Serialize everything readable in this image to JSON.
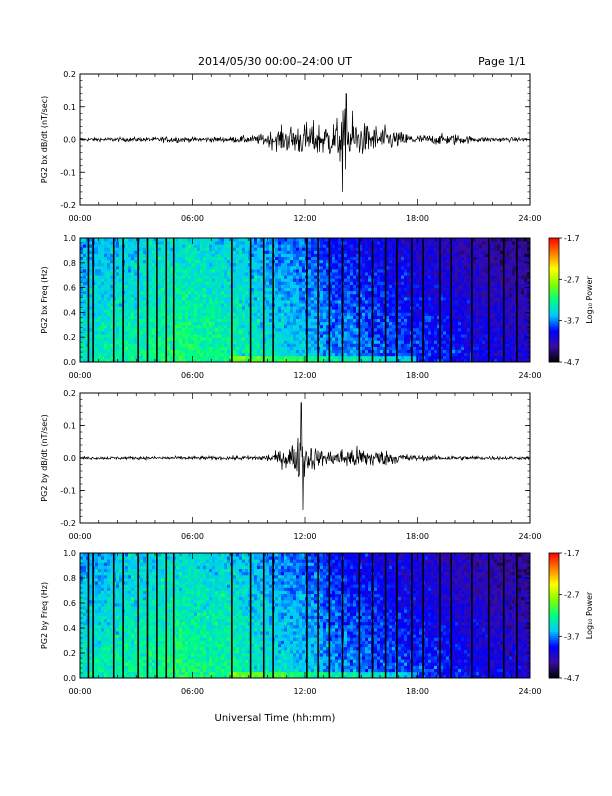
{
  "header": {
    "title": "2014/05/30  00:00–24:00 UT",
    "page": "Page 1/1"
  },
  "xlabel": "Universal Time (hh:mm)",
  "colors": {
    "trace": "#000000",
    "colormap": [
      "#000000",
      "#3a0ca0",
      "#0000ff",
      "#00c8ff",
      "#00ff80",
      "#80ff00",
      "#ffff00",
      "#ff8000",
      "#ff0000"
    ]
  },
  "chart_data": [
    {
      "type": "line",
      "ylabel": "PG2 bx dB/dt (nT/sec)",
      "xlim": [
        0,
        24
      ],
      "ylim": [
        -0.2,
        0.2
      ],
      "xticks": [
        "00:00",
        "06:00",
        "12:00",
        "18:00",
        "24:00"
      ],
      "yticks": [
        "-0.2",
        "-0.1",
        "0.0",
        "0.1",
        "0.2"
      ],
      "envelope": [
        {
          "t": 0,
          "a": 0.008
        },
        {
          "t": 2,
          "a": 0.009
        },
        {
          "t": 4,
          "a": 0.01
        },
        {
          "t": 5,
          "a": 0.015
        },
        {
          "t": 6,
          "a": 0.01
        },
        {
          "t": 8,
          "a": 0.012
        },
        {
          "t": 9.5,
          "a": 0.02
        },
        {
          "t": 10.5,
          "a": 0.045
        },
        {
          "t": 11.5,
          "a": 0.07
        },
        {
          "t": 12.5,
          "a": 0.075
        },
        {
          "t": 13.5,
          "a": 0.08
        },
        {
          "t": 14.3,
          "a": 0.14
        },
        {
          "t": 15,
          "a": 0.07
        },
        {
          "t": 16,
          "a": 0.06
        },
        {
          "t": 17,
          "a": 0.035
        },
        {
          "t": 18,
          "a": 0.02
        },
        {
          "t": 20,
          "a": 0.025
        },
        {
          "t": 21,
          "a": 0.012
        },
        {
          "t": 24,
          "a": 0.008
        }
      ],
      "peaks": [
        {
          "t": 14.2,
          "v": 0.14
        },
        {
          "t": 14.0,
          "v": -0.16
        }
      ]
    },
    {
      "type": "heatmap",
      "ylabel": "PG2 bx Freq (Hz)",
      "xlim": [
        0,
        24
      ],
      "ylim": [
        0.0,
        1.0
      ],
      "xticks": [
        "00:00",
        "06:00",
        "12:00",
        "18:00",
        "24:00"
      ],
      "yticks": [
        "0.0",
        "0.2",
        "0.4",
        "0.6",
        "0.8",
        "1.0"
      ],
      "colorbar": {
        "label": "Log₁₀ Power",
        "ticks": [
          "-1.7",
          "-2.7",
          "-3.7",
          "-4.7"
        ],
        "range": [
          -4.7,
          -1.7
        ]
      },
      "gaps": [
        0.45,
        0.7,
        1.8,
        2.3,
        3.1,
        3.6,
        4.1,
        4.6,
        5.0,
        8.1,
        9.1,
        9.8,
        10.3,
        12.1,
        12.7,
        13.3,
        14.0,
        14.9,
        15.6,
        16.3,
        16.9,
        17.7,
        18.3,
        19.2,
        19.8,
        20.9,
        21.8,
        22.6,
        23.3
      ]
    },
    {
      "type": "line",
      "ylabel": "PG2 by dB/dt (nT/sec)",
      "xlim": [
        0,
        24
      ],
      "ylim": [
        -0.2,
        0.2
      ],
      "xticks": [
        "00:00",
        "06:00",
        "12:00",
        "18:00",
        "24:00"
      ],
      "yticks": [
        "-0.2",
        "-0.1",
        "0.0",
        "0.1",
        "0.2"
      ],
      "envelope": [
        {
          "t": 0,
          "a": 0.006
        },
        {
          "t": 4,
          "a": 0.007
        },
        {
          "t": 8,
          "a": 0.008
        },
        {
          "t": 9.5,
          "a": 0.012
        },
        {
          "t": 10.5,
          "a": 0.025
        },
        {
          "t": 11.2,
          "a": 0.06
        },
        {
          "t": 11.8,
          "a": 0.1
        },
        {
          "t": 12.3,
          "a": 0.06
        },
        {
          "t": 13,
          "a": 0.03
        },
        {
          "t": 13.8,
          "a": 0.04
        },
        {
          "t": 14.5,
          "a": 0.05
        },
        {
          "t": 15.5,
          "a": 0.045
        },
        {
          "t": 16.5,
          "a": 0.03
        },
        {
          "t": 18,
          "a": 0.012
        },
        {
          "t": 20,
          "a": 0.01
        },
        {
          "t": 24,
          "a": 0.006
        }
      ],
      "peaks": [
        {
          "t": 11.8,
          "v": 0.17
        },
        {
          "t": 11.9,
          "v": -0.16
        }
      ]
    },
    {
      "type": "heatmap",
      "ylabel": "PG2 by Freq (Hz)",
      "xlim": [
        0,
        24
      ],
      "ylim": [
        0.0,
        1.0
      ],
      "xticks": [
        "00:00",
        "06:00",
        "12:00",
        "18:00",
        "24:00"
      ],
      "yticks": [
        "0.0",
        "0.2",
        "0.4",
        "0.6",
        "0.8",
        "1.0"
      ],
      "colorbar": {
        "label": "Log₁₀ Power",
        "ticks": [
          "-1.7",
          "-2.7",
          "-3.7",
          "-4.7"
        ],
        "range": [
          -4.7,
          -1.7
        ]
      },
      "gaps": [
        0.45,
        0.7,
        1.8,
        2.3,
        3.1,
        3.6,
        4.1,
        4.6,
        5.0,
        8.1,
        9.1,
        9.8,
        10.3,
        12.1,
        12.7,
        13.3,
        14.0,
        14.9,
        15.6,
        16.3,
        16.9,
        17.7,
        18.3,
        19.2,
        19.8,
        20.9,
        21.8,
        22.6,
        23.3
      ]
    }
  ]
}
